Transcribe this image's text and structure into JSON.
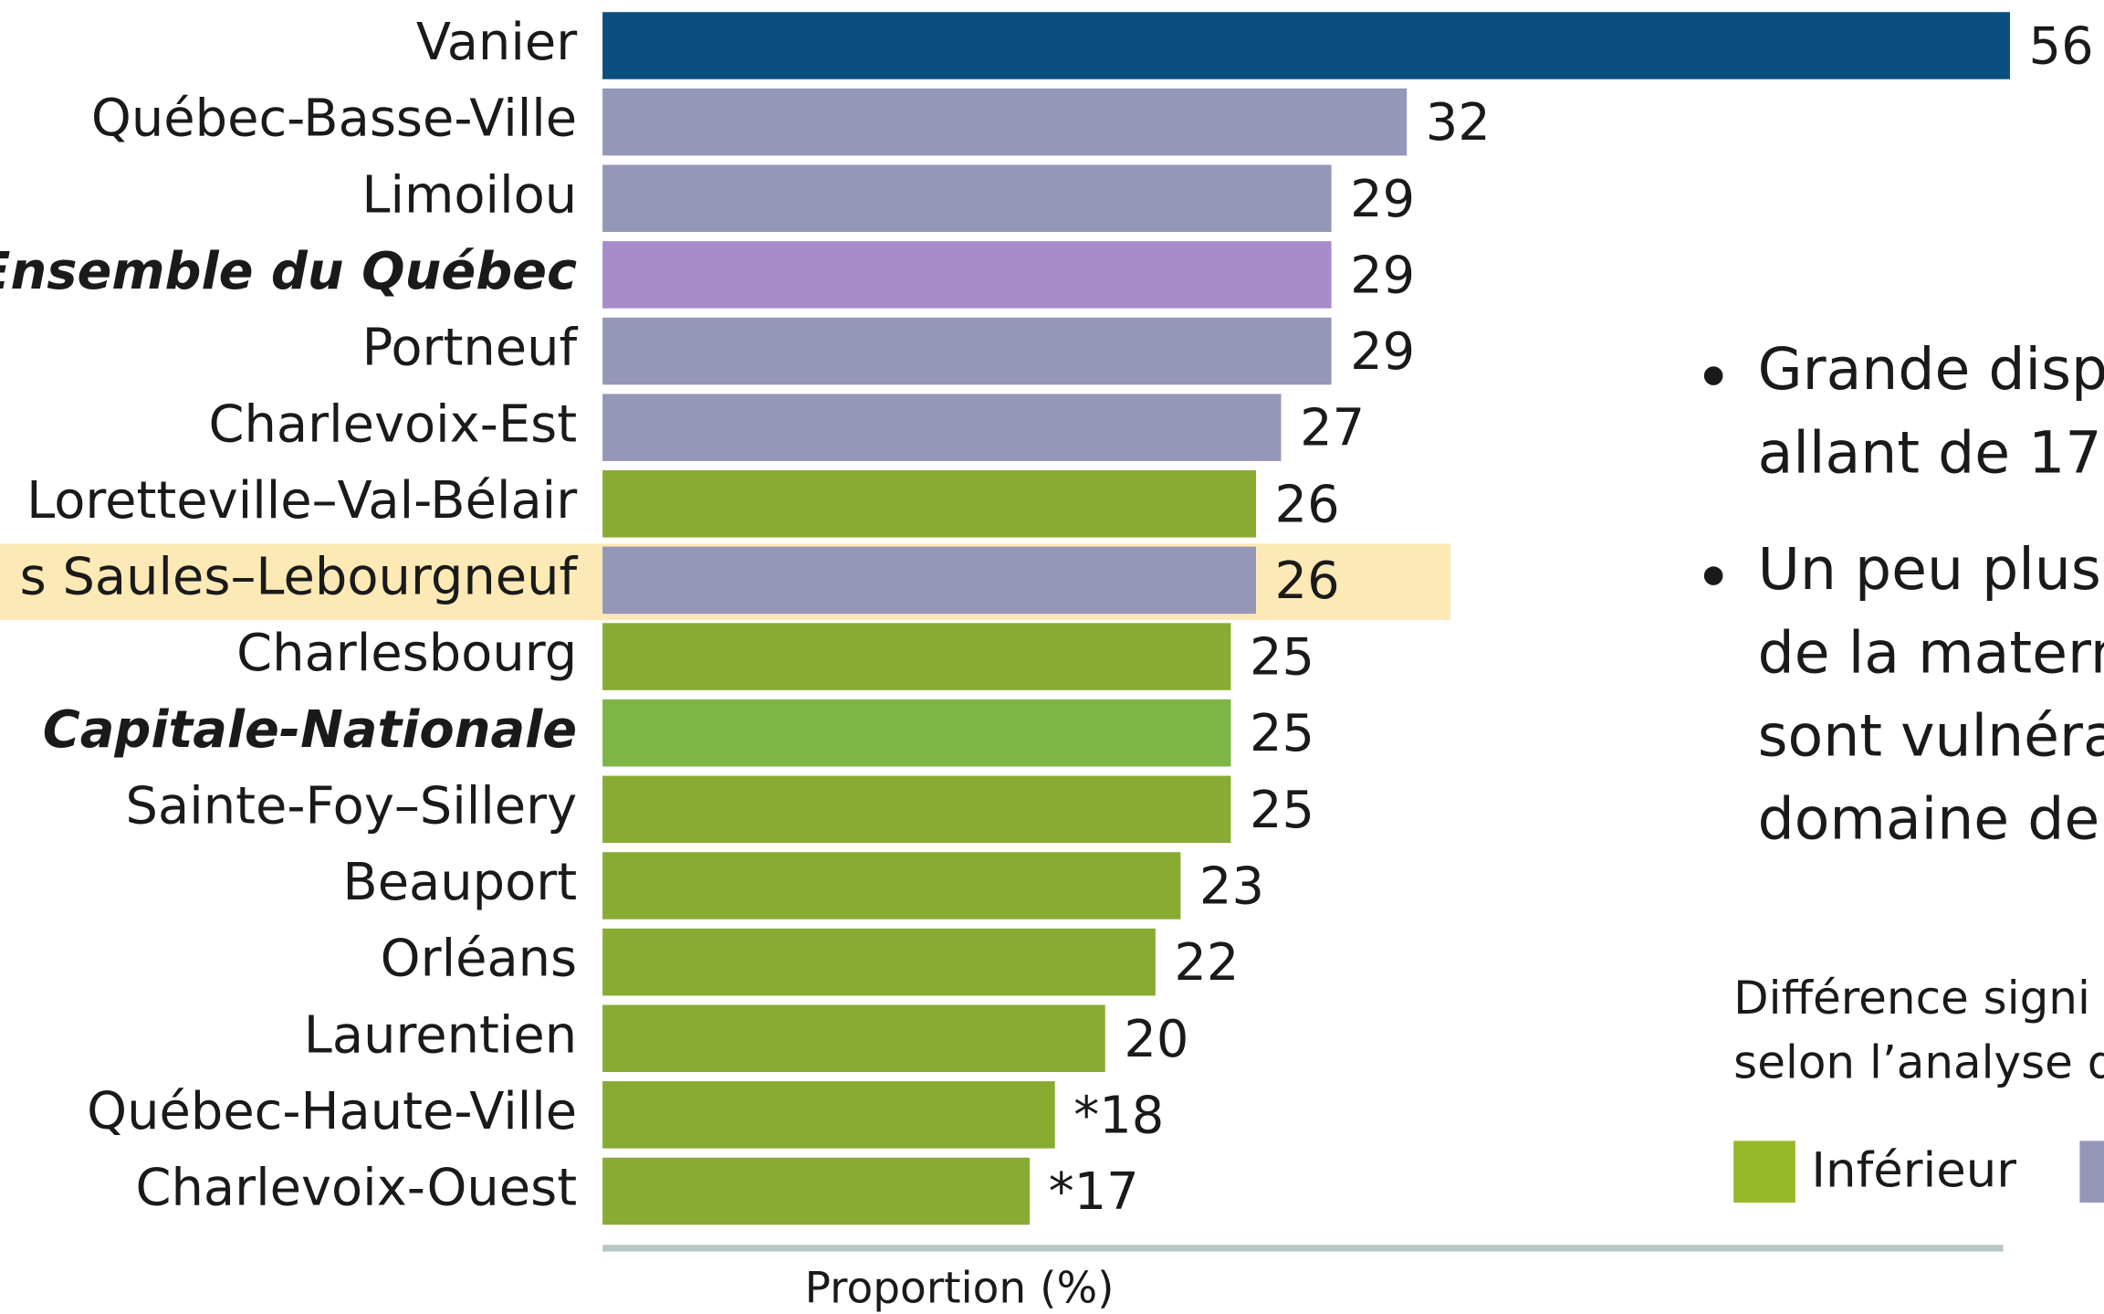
{
  "chart_data": {
    "type": "barh",
    "categories": [
      "Vanier",
      "Québec-Basse-Ville",
      "Limoilou",
      "Ensemble du Québec",
      "Portneuf",
      "Charlevoix-Est",
      "Loretteville–Val-Bélair",
      "s Saules–Lebourgneuf",
      "Charlesbourg",
      "Capitale-Nationale",
      "Sainte-Foy–Sillery",
      "Beauport",
      "Orléans",
      "Laurentien",
      "Québec-Haute-Ville",
      "Charlevoix-Ouest"
    ],
    "values": [
      56,
      32,
      29,
      29,
      29,
      27,
      26,
      26,
      25,
      25,
      25,
      23,
      22,
      20,
      18,
      17
    ],
    "value_labels": [
      "56",
      "32",
      "29",
      "29",
      "29",
      "27",
      "26",
      "26",
      "25",
      "25",
      "25",
      "23",
      "22",
      "20",
      "*18",
      "*17"
    ],
    "colors": [
      "#0b4f80",
      "#9597b8",
      "#9597b8",
      "#a78bcb",
      "#9597b8",
      "#9597b8",
      "#88ab32",
      "#9597b8",
      "#88ab32",
      "#7db547",
      "#88ab32",
      "#88ab32",
      "#88ab32",
      "#88ab32",
      "#88ab32",
      "#88ab32"
    ],
    "xlim": [
      0,
      56
    ],
    "xlabel": "Proportion (%)",
    "notes": [
      [
        "Grande disp",
        "allant de 17"
      ],
      [
        "Un peu plus",
        "de la matern",
        "sont vulnéra",
        "domaine de"
      ]
    ],
    "legend_title": [
      "Différence signi",
      "selon l’analyse d"
    ],
    "legend": [
      {
        "name": "Inférieur",
        "color": "#97b82a"
      },
      {
        "color": "#9597b8"
      }
    ]
  }
}
